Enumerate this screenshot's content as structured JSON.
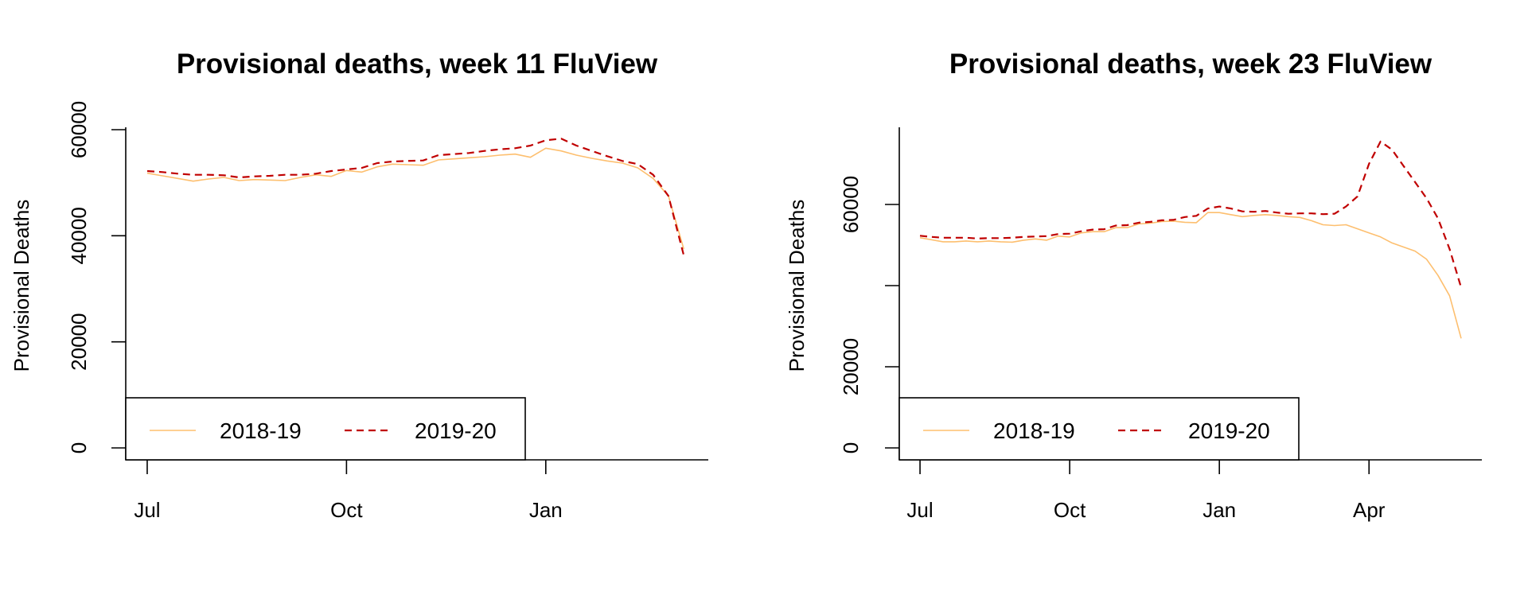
{
  "chart_data": [
    {
      "type": "line",
      "title": "Provisional deaths, week 11 FluView",
      "ylabel": "Provisional Deaths",
      "xlabel": "",
      "ylim": [
        0,
        60000
      ],
      "y_ticks": [
        0,
        20000,
        40000,
        60000
      ],
      "x_ticks": [
        {
          "label": "Jul",
          "week": 0
        },
        {
          "label": "Oct",
          "week": 13
        },
        {
          "label": "Jan",
          "week": 26
        }
      ],
      "x_range_weeks": [
        -1.4,
        36.6
      ],
      "legend_position": "bottom-left",
      "series": [
        {
          "name": "2018-19",
          "color": "#FDBF6F",
          "dash": "solid",
          "weeks": [
            0,
            1,
            2,
            3,
            4,
            5,
            6,
            7,
            8,
            9,
            10,
            11,
            12,
            13,
            14,
            15,
            16,
            17,
            18,
            19,
            20,
            21,
            22,
            23,
            24,
            25,
            26,
            27,
            28,
            29,
            30,
            31,
            32,
            33,
            34,
            35
          ],
          "values": [
            51800,
            51300,
            50800,
            50300,
            50700,
            51000,
            50400,
            50600,
            50500,
            50400,
            51000,
            51500,
            51200,
            52300,
            52000,
            53000,
            53500,
            53400,
            53300,
            54300,
            54500,
            54700,
            54900,
            55200,
            55400,
            54800,
            56500,
            56000,
            55200,
            54600,
            54100,
            53700,
            52800,
            50800,
            47500,
            37500
          ]
        },
        {
          "name": "2019-20",
          "color": "#C00000",
          "dash": "dashed",
          "weeks": [
            0,
            1,
            2,
            3,
            4,
            5,
            6,
            7,
            8,
            9,
            10,
            11,
            12,
            13,
            14,
            15,
            16,
            17,
            18,
            19,
            20,
            21,
            22,
            23,
            24,
            25,
            26,
            27,
            28,
            29,
            30,
            31,
            32,
            33,
            34,
            35
          ],
          "values": [
            52200,
            52000,
            51700,
            51500,
            51500,
            51400,
            51000,
            51200,
            51300,
            51500,
            51500,
            51700,
            52200,
            52500,
            52800,
            53700,
            54000,
            54100,
            54200,
            55200,
            55400,
            55600,
            56000,
            56300,
            56500,
            57000,
            58000,
            58300,
            57000,
            56000,
            55000,
            54100,
            53500,
            51500,
            47500,
            36300
          ]
        }
      ]
    },
    {
      "type": "line",
      "title": "Provisional deaths, week 23 FluView",
      "ylabel": "Provisional Deaths",
      "xlabel": "",
      "ylim": [
        0,
        80000
      ],
      "y_ticks": [
        0,
        20000,
        40000,
        60000
      ],
      "y_tick_labels": [
        "0",
        "20000",
        "",
        "60000"
      ],
      "x_ticks": [
        {
          "label": "Jul",
          "week": 0
        },
        {
          "label": "Oct",
          "week": 13
        },
        {
          "label": "Jan",
          "week": 26
        },
        {
          "label": "Apr",
          "week": 39
        }
      ],
      "x_range_weeks": [
        -1.8,
        48.8
      ],
      "legend_position": "bottom-left",
      "series": [
        {
          "name": "2018-19",
          "color": "#FDBF6F",
          "dash": "solid",
          "weeks": [
            0,
            1,
            2,
            3,
            4,
            5,
            6,
            7,
            8,
            9,
            10,
            11,
            12,
            13,
            14,
            15,
            16,
            17,
            18,
            19,
            20,
            21,
            22,
            23,
            24,
            25,
            26,
            27,
            28,
            29,
            30,
            31,
            32,
            33,
            34,
            35,
            36,
            37,
            38,
            39,
            40,
            41,
            42,
            43,
            44,
            45,
            46,
            47
          ],
          "values": [
            51800,
            51300,
            50800,
            50800,
            51000,
            50800,
            51000,
            50800,
            50700,
            51200,
            51500,
            51200,
            52200,
            52000,
            53000,
            53300,
            53300,
            54300,
            54300,
            55200,
            55400,
            55800,
            55900,
            55600,
            55500,
            58000,
            58000,
            57500,
            57000,
            57300,
            57500,
            57300,
            57000,
            56800,
            56000,
            55000,
            54800,
            55000,
            54000,
            53000,
            52000,
            50500,
            49500,
            48500,
            46500,
            42500,
            37500,
            27000
          ],
          "peak_note": ""
        },
        {
          "name": "2019-20",
          "color": "#C00000",
          "dash": "dashed",
          "weeks": [
            0,
            1,
            2,
            3,
            4,
            5,
            6,
            7,
            8,
            9,
            10,
            11,
            12,
            13,
            14,
            15,
            16,
            17,
            18,
            19,
            20,
            21,
            22,
            23,
            24,
            25,
            26,
            27,
            28,
            29,
            30,
            31,
            32,
            33,
            34,
            35,
            36,
            37,
            38,
            39,
            40,
            41,
            42,
            43,
            44,
            45,
            46,
            47
          ],
          "values": [
            52300,
            52000,
            51800,
            51800,
            51800,
            51600,
            51700,
            51700,
            51800,
            52000,
            52100,
            52200,
            52700,
            52800,
            53400,
            53800,
            53900,
            54800,
            54900,
            55500,
            55700,
            56100,
            56200,
            56900,
            57200,
            59000,
            59500,
            59000,
            58300,
            58200,
            58400,
            58000,
            57700,
            57800,
            57800,
            57600,
            57700,
            59500,
            62000,
            70000,
            75500,
            73500,
            69500,
            65500,
            61500,
            56500,
            49000,
            39500
          ]
        }
      ]
    }
  ]
}
